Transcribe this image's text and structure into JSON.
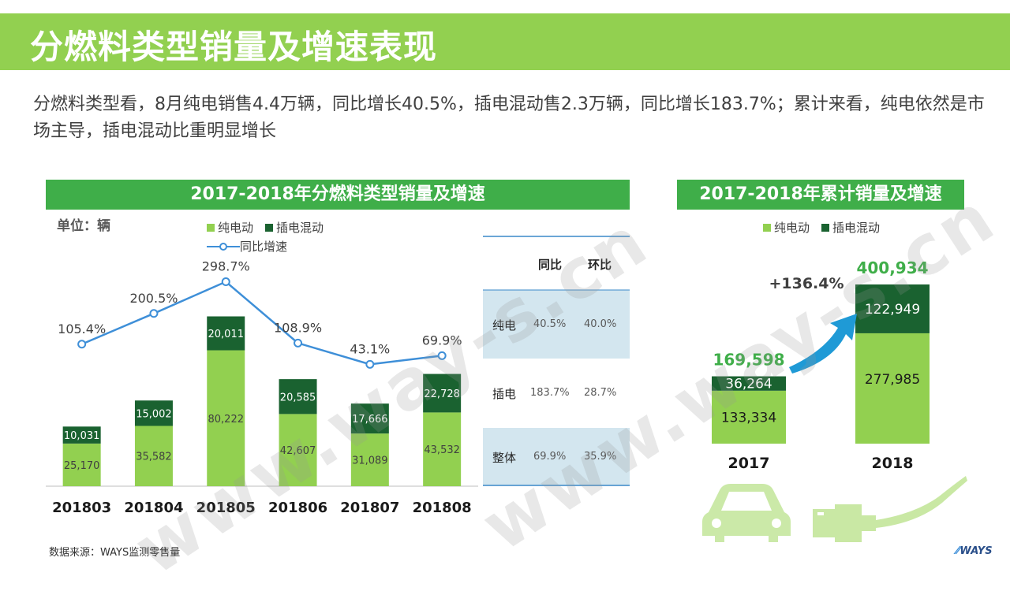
{
  "page": {
    "title": "分燃料类型销量及增速表现",
    "intro": "分燃料类型看，8月纯电销售4.4万辆，同比增长40.5%，插电混动售2.3万辆，同比增长183.7%；累计来看，纯电依然是市场主导，插电混动比重明显增长",
    "source": "数据来源：WAYS监测零售量",
    "watermark": "www.way-s.cn",
    "logo": "WAYS"
  },
  "colors": {
    "header_band": "#92d050",
    "panel_header": "#3fae49",
    "ev": "#92d050",
    "phev": "#1a6230",
    "growth_line": "#3e8fd8",
    "growth_label_left": "#404040",
    "growth_label_right": "#3fae49",
    "table_band": "#d3e6ef",
    "table_rule": "#3a88c8"
  },
  "chart_data": [
    {
      "type": "bar",
      "title": "2017-2018年分燃料类型销量及增速",
      "unit_label": "单位：辆",
      "stacked": true,
      "categories": [
        "201803",
        "201804",
        "201805",
        "201806",
        "201807",
        "201808"
      ],
      "series": [
        {
          "name": "纯电动",
          "values": [
            25170,
            35582,
            80222,
            42607,
            31089,
            43532
          ],
          "labels": [
            "25,170",
            "35,582",
            "80,222",
            "42,607",
            "31,089",
            "43,532"
          ]
        },
        {
          "name": "插电混动",
          "values": [
            10031,
            15002,
            20011,
            20585,
            17666,
            22728
          ],
          "labels": [
            "10,031",
            "15,002",
            "20,011",
            "20,585",
            "17,666",
            "22,728"
          ]
        }
      ],
      "line_series": {
        "name": "同比增速",
        "values": [
          105.4,
          200.5,
          298.7,
          108.9,
          43.1,
          69.9
        ],
        "labels": [
          "105.4%",
          "200.5%",
          "298.7%",
          "108.9%",
          "43.1%",
          "69.9%"
        ]
      },
      "legend": "top"
    },
    {
      "type": "bar",
      "title": "2017-2018年累计销量及增速",
      "stacked": true,
      "categories": [
        "2017",
        "2018"
      ],
      "series": [
        {
          "name": "纯电动",
          "values": [
            133334,
            277985
          ],
          "labels": [
            "133,334",
            "277,985"
          ]
        },
        {
          "name": "插电混动",
          "values": [
            36264,
            122949
          ],
          "labels": [
            "36,264",
            "122,949"
          ]
        }
      ],
      "totals": [
        169598,
        400934
      ],
      "total_labels": [
        "169,598",
        "400,934"
      ],
      "growth_label": "+136.4%",
      "legend": "top"
    },
    {
      "type": "table",
      "columns": [
        "",
        "同比",
        "环比"
      ],
      "rows": [
        [
          "纯电",
          "40.5%",
          "40.0%"
        ],
        [
          "插电",
          "183.7%",
          "28.7%"
        ],
        [
          "整体",
          "69.9%",
          "35.9%"
        ]
      ]
    }
  ]
}
